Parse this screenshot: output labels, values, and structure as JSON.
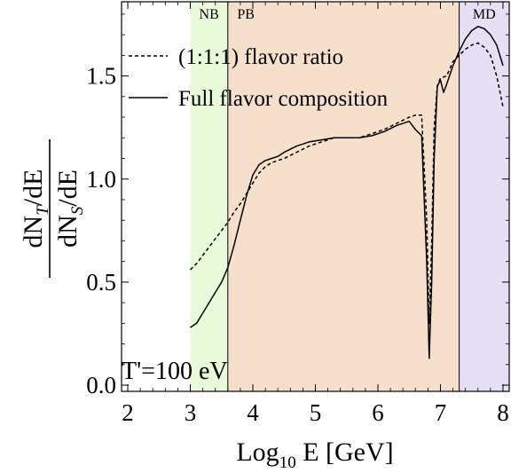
{
  "chart_data": {
    "type": "line",
    "xlabel_base": "Log",
    "xlabel_sub": "10",
    "xlabel_rest": " E [GeV]",
    "ylabel": {
      "num_a": "dN",
      "num_sub": "T",
      "num_b": "/dE",
      "den_a": "dN",
      "den_sub": "S",
      "den_b": "/dE"
    },
    "xlim": [
      1.9,
      8.1
    ],
    "ylim": [
      -0.03,
      1.86
    ],
    "xticks": [
      2,
      3,
      4,
      5,
      6,
      7,
      8
    ],
    "yticks": [
      0.0,
      0.5,
      1.0,
      1.5
    ],
    "ytick_labels": [
      "0.0",
      "0.5",
      "1.0",
      "1.5"
    ],
    "regions": [
      {
        "label": "NB",
        "x": [
          3.0,
          3.6
        ],
        "color": "#e8fad7"
      },
      {
        "label": "PB",
        "x": [
          3.6,
          7.3
        ],
        "color": "#f6e0cc"
      },
      {
        "label": "MD",
        "x": [
          7.3,
          8.1
        ],
        "color": "#e6e0f5"
      }
    ],
    "region_boundaries": [
      3.6,
      7.3
    ],
    "annotation": "T'=100 eV",
    "legend": {
      "position": "top-left",
      "entries": [
        "(1:1:1) flavor ratio",
        "Full flavor composition"
      ]
    },
    "series": [
      {
        "name": "(1:1:1) flavor ratio",
        "style": "dashed",
        "x": [
          3.0,
          3.1,
          3.2,
          3.3,
          3.4,
          3.5,
          3.6,
          3.7,
          3.8,
          3.9,
          4.0,
          4.1,
          4.2,
          4.3,
          4.4,
          4.5,
          4.7,
          4.9,
          5.1,
          5.3,
          5.5,
          5.7,
          5.9,
          6.1,
          6.3,
          6.5,
          6.6,
          6.7,
          6.78,
          6.82,
          6.86,
          6.9,
          6.95,
          7.0,
          7.1,
          7.2,
          7.3,
          7.4,
          7.5,
          7.6,
          7.7,
          7.8,
          7.9,
          8.0
        ],
        "y": [
          0.56,
          0.59,
          0.63,
          0.67,
          0.71,
          0.75,
          0.79,
          0.84,
          0.88,
          0.93,
          0.98,
          1.03,
          1.06,
          1.08,
          1.09,
          1.1,
          1.13,
          1.16,
          1.18,
          1.2,
          1.2,
          1.2,
          1.22,
          1.24,
          1.27,
          1.3,
          1.31,
          1.31,
          0.8,
          0.3,
          0.7,
          1.25,
          1.45,
          1.49,
          1.5,
          1.57,
          1.6,
          1.63,
          1.65,
          1.66,
          1.64,
          1.6,
          1.5,
          1.35
        ]
      },
      {
        "name": "Full flavor composition",
        "style": "solid",
        "x": [
          3.0,
          3.1,
          3.2,
          3.3,
          3.4,
          3.5,
          3.6,
          3.7,
          3.8,
          3.9,
          4.0,
          4.1,
          4.2,
          4.3,
          4.4,
          4.5,
          4.7,
          4.9,
          5.1,
          5.3,
          5.5,
          5.7,
          5.9,
          6.1,
          6.3,
          6.5,
          6.6,
          6.7,
          6.78,
          6.82,
          6.86,
          6.9,
          6.95,
          7.0,
          7.05,
          7.1,
          7.2,
          7.3,
          7.4,
          7.5,
          7.6,
          7.7,
          7.8,
          7.9,
          8.0
        ],
        "y": [
          0.28,
          0.3,
          0.35,
          0.4,
          0.45,
          0.5,
          0.57,
          0.68,
          0.8,
          0.92,
          1.02,
          1.07,
          1.09,
          1.1,
          1.11,
          1.13,
          1.16,
          1.18,
          1.19,
          1.2,
          1.2,
          1.2,
          1.21,
          1.23,
          1.26,
          1.28,
          1.24,
          1.21,
          0.6,
          0.13,
          0.5,
          1.1,
          1.45,
          1.48,
          1.42,
          1.46,
          1.55,
          1.62,
          1.68,
          1.72,
          1.74,
          1.73,
          1.7,
          1.65,
          1.55
        ]
      }
    ]
  }
}
